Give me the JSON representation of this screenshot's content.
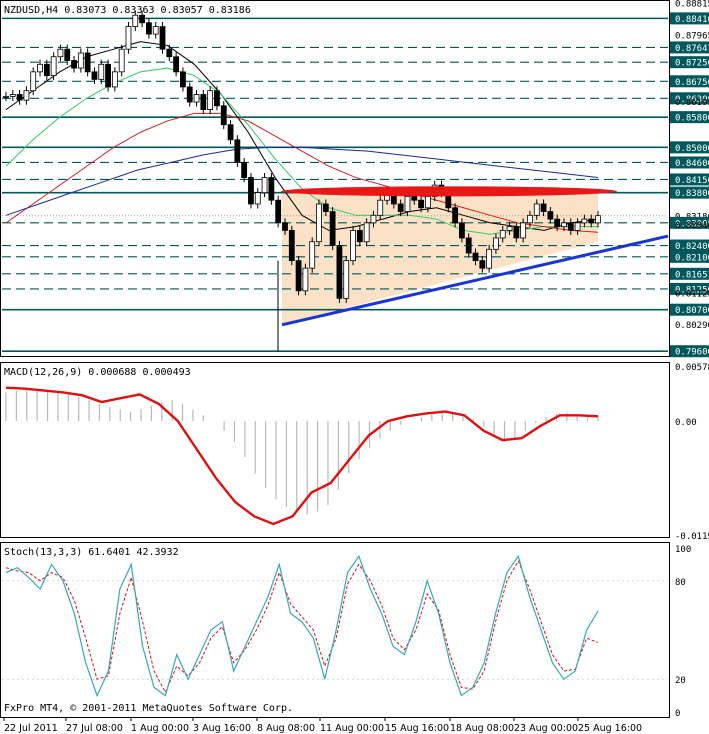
{
  "chart_data": [
    {
      "type": "candlestick",
      "title": "NZDUSD,H4  0.83073 0.83363 0.83057 0.83186",
      "ylim": [
        0.795,
        0.8885
      ],
      "y_ticks": [
        "0.88815",
        "0.87965",
        "0.86195",
        "0.85000",
        "0.84150",
        "0.83186",
        "0.82940",
        "0.81125",
        "0.80290",
        "0.7960"
      ],
      "price_levels": [
        {
          "label": "0.88416",
          "value": 0.88416,
          "style": "solid"
        },
        {
          "label": "0.87647",
          "value": 0.87647,
          "style": "dashed"
        },
        {
          "label": "0.87256",
          "value": 0.87256,
          "style": "dashed"
        },
        {
          "label": "0.86750",
          "value": 0.8675,
          "style": "dashed"
        },
        {
          "label": "0.86300",
          "value": 0.863,
          "style": "dashed"
        },
        {
          "label": "0.85800",
          "value": 0.858,
          "style": "solid"
        },
        {
          "label": "0.85000",
          "value": 0.85,
          "style": "solid"
        },
        {
          "label": "0.84600",
          "value": 0.846,
          "style": "dashed"
        },
        {
          "label": "0.84150",
          "value": 0.8415,
          "style": "dashed"
        },
        {
          "label": "0.83800",
          "value": 0.838,
          "style": "solid"
        },
        {
          "label": "0.83186",
          "value": 0.83186,
          "style": "current"
        },
        {
          "label": "0.83000",
          "value": 0.83,
          "style": "dashed"
        },
        {
          "label": "0.82400",
          "value": 0.824,
          "style": "dashed"
        },
        {
          "label": "0.82100",
          "value": 0.821,
          "style": "dashed"
        },
        {
          "label": "0.81651",
          "value": 0.81651,
          "style": "dashed"
        },
        {
          "label": "0.81250",
          "value": 0.8125,
          "style": "dashed"
        },
        {
          "label": "0.80700",
          "value": 0.807,
          "style": "solid"
        },
        {
          "label": "0.79600",
          "value": 0.796,
          "style": "solid"
        }
      ],
      "close_series": [
        0.8635,
        0.864,
        0.8625,
        0.865,
        0.87,
        0.872,
        0.869,
        0.874,
        0.876,
        0.873,
        0.871,
        0.875,
        0.87,
        0.868,
        0.872,
        0.866,
        0.87,
        0.876,
        0.882,
        0.885,
        0.883,
        0.88,
        0.882,
        0.876,
        0.874,
        0.87,
        0.866,
        0.862,
        0.864,
        0.86,
        0.865,
        0.861,
        0.856,
        0.852,
        0.846,
        0.842,
        0.835,
        0.838,
        0.842,
        0.836,
        0.83,
        0.828,
        0.82,
        0.812,
        0.818,
        0.825,
        0.835,
        0.833,
        0.824,
        0.81,
        0.82,
        0.828,
        0.825,
        0.83,
        0.832,
        0.836,
        0.838,
        0.835,
        0.833,
        0.837,
        0.836,
        0.834,
        0.837,
        0.84,
        0.838,
        0.834,
        0.83,
        0.826,
        0.822,
        0.82,
        0.818,
        0.823,
        0.826,
        0.828,
        0.829,
        0.826,
        0.83,
        0.832,
        0.835,
        0.833,
        0.831,
        0.829,
        0.83,
        0.828,
        0.83,
        0.831,
        0.83,
        0.8319
      ],
      "moving_averages": [
        {
          "name": "",
          "color": "#000000",
          "values": [
            0.86,
            0.865,
            0.87,
            0.874,
            0.876,
            0.878,
            0.877,
            0.872,
            0.864,
            0.854,
            0.842,
            0.832,
            0.828,
            0.829,
            0.831,
            0.833,
            0.834,
            0.832,
            0.83,
            0.829,
            0.828,
            0.83,
            0.831
          ]
        },
        {
          "name": "",
          "color": "#33cc66",
          "values": [
            0.845,
            0.852,
            0.858,
            0.863,
            0.867,
            0.87,
            0.871,
            0.869,
            0.864,
            0.856,
            0.847,
            0.839,
            0.834,
            0.832,
            0.832,
            0.832,
            0.831,
            0.828,
            0.827,
            0.828,
            0.829,
            0.829,
            0.829
          ]
        },
        {
          "name": "",
          "color": "#cc2222",
          "values": [
            0.83,
            0.835,
            0.84,
            0.845,
            0.85,
            0.854,
            0.857,
            0.859,
            0.859,
            0.857,
            0.853,
            0.849,
            0.845,
            0.842,
            0.84,
            0.838,
            0.836,
            0.834,
            0.832,
            0.83,
            0.829,
            0.828,
            0.8275
          ]
        },
        {
          "name": "",
          "color": "#1a2a99",
          "values": [
            0.832,
            0.835,
            0.838,
            0.841,
            0.844,
            0.846,
            0.848,
            0.8495,
            0.85,
            0.85,
            0.8495,
            0.849,
            0.848,
            0.847,
            0.846,
            0.845,
            0.844,
            0.843,
            0.842
          ]
        }
      ],
      "triangle_support": {
        "from": {
          "x_label": "8 Aug 08:00",
          "y": 0.803
        },
        "to": {
          "x_label": "25 Aug 16:00",
          "y": 0.825
        }
      },
      "resistance_zone": {
        "low": 0.8375,
        "high": 0.8392
      }
    },
    {
      "type": "bar+line",
      "title": "MACD(12,26,9) 0.000688 0.000493",
      "ylim": [
        -0.01196,
        0.00578
      ],
      "y_ticks": [
        "0.00578",
        "0.00",
        "-0.01196"
      ],
      "histogram": [
        0.003,
        0.0032,
        0.0034,
        0.0033,
        0.0032,
        0.003,
        0.0028,
        0.0025,
        0.0022,
        0.0018,
        0.0015,
        0.0012,
        0.001,
        0.0012,
        0.0016,
        0.002,
        0.0022,
        0.0018,
        0.0012,
        0.0006,
        0.0,
        -0.001,
        -0.0022,
        -0.0038,
        -0.0055,
        -0.007,
        -0.0082,
        -0.009,
        -0.0095,
        -0.0098,
        -0.0095,
        -0.0088,
        -0.0072,
        -0.0055,
        -0.004,
        -0.0028,
        -0.0018,
        -0.001,
        -0.0004,
        0.0,
        0.0004,
        0.0007,
        0.0008,
        0.0008,
        0.0006,
        0.0002,
        -0.0006,
        -0.0016,
        -0.0022,
        -0.0018,
        -0.001,
        -0.0002,
        0.0004,
        0.0008,
        0.0009,
        0.0007,
        0.0005,
        0.0006
      ],
      "signal": [
        0.0035,
        0.0034,
        0.0032,
        0.003,
        0.0027,
        0.002,
        0.0024,
        0.0028,
        0.0018,
        0.0,
        -0.003,
        -0.006,
        -0.0085,
        -0.01,
        -0.0108,
        -0.01,
        -0.0075,
        -0.0065,
        -0.004,
        -0.0015,
        0.0,
        0.0005,
        0.0008,
        0.001,
        0.0006,
        -0.001,
        -0.002,
        -0.0018,
        -0.0005,
        0.0006,
        0.0006,
        0.0005
      ]
    },
    {
      "type": "line",
      "title": "Stoch(13,3,3) 61.6401 42.3932",
      "ylim": [
        0,
        100
      ],
      "y_ticks": [
        "100",
        "80",
        "20",
        "0"
      ],
      "main": [
        85,
        88,
        82,
        75,
        90,
        80,
        60,
        30,
        10,
        25,
        75,
        90,
        40,
        15,
        10,
        35,
        20,
        35,
        50,
        55,
        25,
        40,
        55,
        70,
        90,
        60,
        55,
        45,
        20,
        50,
        85,
        95,
        75,
        60,
        40,
        35,
        55,
        80,
        60,
        30,
        10,
        15,
        30,
        60,
        85,
        95,
        70,
        50,
        30,
        20,
        25,
        50,
        61.6
      ],
      "signal": [
        88,
        86,
        85,
        80,
        85,
        82,
        68,
        45,
        20,
        22,
        60,
        82,
        55,
        25,
        12,
        28,
        22,
        30,
        45,
        52,
        30,
        38,
        50,
        65,
        85,
        66,
        58,
        50,
        28,
        45,
        78,
        90,
        80,
        65,
        45,
        38,
        50,
        72,
        62,
        35,
        15,
        14,
        25,
        55,
        80,
        92,
        75,
        55,
        35,
        25,
        26,
        45,
        42.4
      ]
    }
  ],
  "x_tick_labels": [
    "22 Jul 2011",
    "27 Jul 08:00",
    "1 Aug 00:00",
    "3 Aug 16:00",
    "8 Aug 08:00",
    "11 Aug 00:00",
    "15 Aug 16:00",
    "18 Aug 08:00",
    "23 Aug 00:00",
    "25 Aug 16:00"
  ],
  "footer": "FxPro MT4, © 2001-2011 MetaQuotes Software Corp.",
  "colors": {
    "bull_candle": "#ffffff",
    "bear_candle": "#000000",
    "level_line": "#00585c",
    "triangle_fill": "#fbe2c6",
    "support_line": "#1a35d6",
    "resistance": "#e81818",
    "macd_signal": "#e01010",
    "macd_hist": "#b8b8b8",
    "stoch_main": "#38a8b8",
    "stoch_signal": "#d81010"
  }
}
